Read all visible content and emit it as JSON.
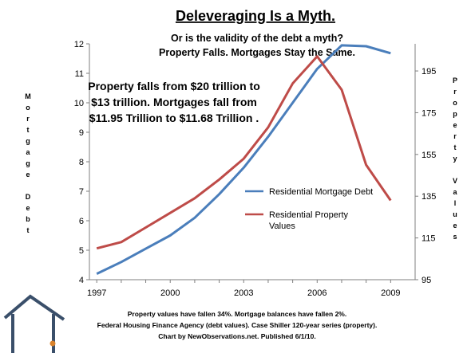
{
  "chart_data": {
    "type": "line",
    "title": "Deleveraging Is a Myth.",
    "subtitle_lines": [
      "Or is the validity of the debt a myth?",
      "Property Falls. Mortgages Stay the Same."
    ],
    "annotation_lines": [
      "Property falls from $20 trillion to",
      "$13 trillion. Mortgages fall from",
      "$11.95 Trillion to $11.68 Trillion ."
    ],
    "ylabel_left_letters": [
      "M",
      "o",
      "r",
      "t",
      "g",
      "a",
      "g",
      "e",
      "",
      "D",
      "e",
      "b",
      "t"
    ],
    "ylabel_right_letters": [
      "P",
      "r",
      "o",
      "p",
      "e",
      "r",
      "t",
      "y",
      "",
      "V",
      "a",
      "l",
      "u",
      "e",
      "s"
    ],
    "x_ticks": [
      "1997",
      "2000",
      "2003",
      "2006",
      "2009"
    ],
    "x_tick_values": [
      1997,
      2000,
      2003,
      2006,
      2009
    ],
    "xlim": [
      1996.7,
      2010
    ],
    "y_left_ticks": [
      "4",
      "5",
      "6",
      "7",
      "8",
      "9",
      "10",
      "11",
      "12"
    ],
    "y_left_tick_values": [
      4,
      5,
      6,
      7,
      8,
      9,
      10,
      11,
      12
    ],
    "ylim_left": [
      4,
      12
    ],
    "y_right_ticks": [
      "95",
      "115",
      "135",
      "155",
      "175",
      "195"
    ],
    "y_right_tick_values": [
      95,
      115,
      135,
      155,
      175,
      195
    ],
    "ylim_right": [
      95,
      208
    ],
    "grid": false,
    "series": [
      {
        "name": "Residential Mortgage Debt",
        "axis": "left",
        "color": "#4a7ebb",
        "x": [
          1997,
          1998,
          1999,
          2000,
          2001,
          2002,
          2003,
          2004,
          2005,
          2006,
          2007,
          2008,
          2009
        ],
        "y": [
          4.2,
          4.6,
          5.05,
          5.5,
          6.1,
          6.9,
          7.8,
          8.85,
          10.0,
          11.15,
          11.95,
          11.92,
          11.68
        ]
      },
      {
        "name": "Residential Property Values",
        "axis": "right",
        "color": "#be4b48",
        "x": [
          1997,
          1998,
          1999,
          2000,
          2001,
          2002,
          2003,
          2004,
          2005,
          2006,
          2007,
          2008,
          2009
        ],
        "y": [
          110,
          113,
          120,
          127,
          134,
          143,
          153,
          168,
          189,
          202,
          186,
          150,
          133
        ]
      }
    ],
    "legend_position": "right",
    "legend": [
      {
        "lines": [
          "Residential Mortgage Debt"
        ],
        "color": "#4a7ebb"
      },
      {
        "lines": [
          "Residential Property",
          "Values"
        ],
        "color": "#be4b48"
      }
    ],
    "footer_lines": [
      "Property values have fallen 34%. Mortgage balances have fallen 2%.",
      "Federal Housing Finance Agency  (debt values). Case Shiller 120-year series (property).",
      "Chart by NewObservations.net. Published 6/1/10."
    ]
  },
  "logo": {
    "name": "house-logo",
    "color": "#3a4f6a"
  }
}
